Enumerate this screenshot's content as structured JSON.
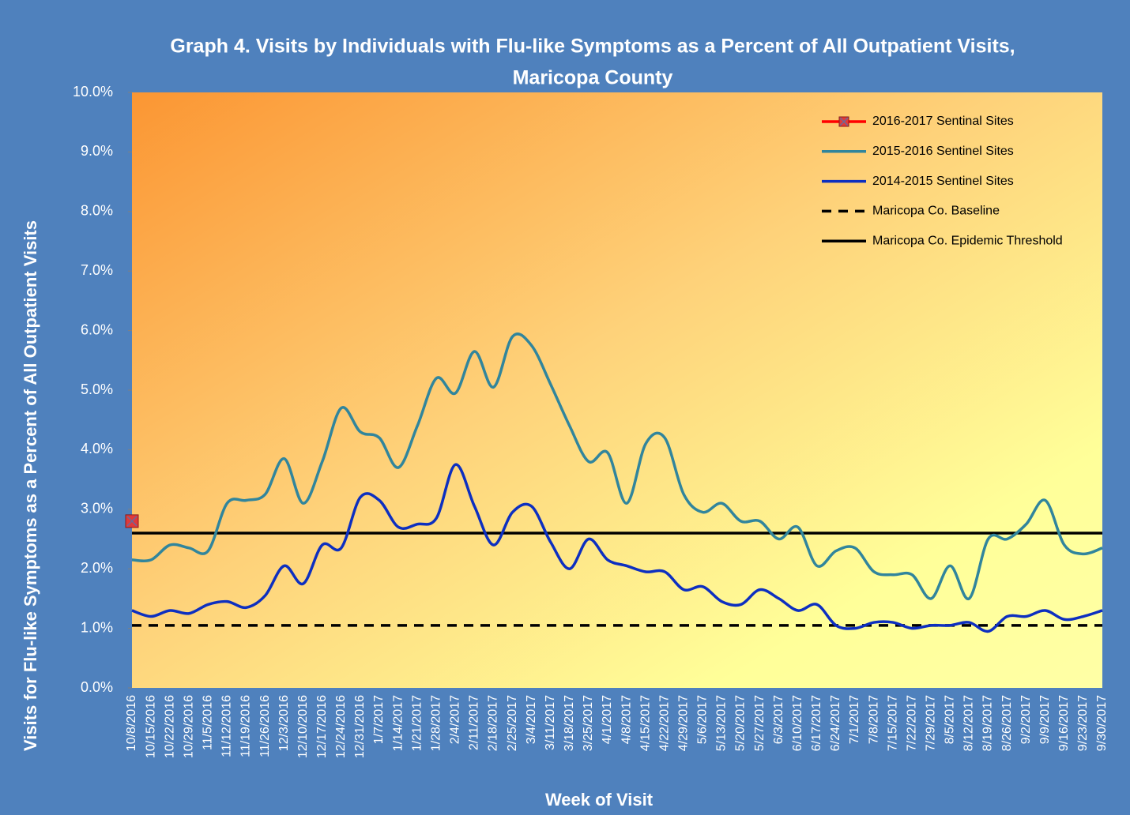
{
  "chart_data": {
    "type": "line",
    "title": [
      "Graph 4. Visits by Individuals  with Flu-like Symptoms as a Percent of All Outpatient Visits,",
      "Maricopa County"
    ],
    "x_label": "Week of Visit",
    "y_label": "Visits for Flu-like Symptoms as a Percent of All Outpatient Visits",
    "categories": [
      "10/8/2016",
      "10/15/2016",
      "10/22/2016",
      "10/29/2016",
      "11/5/2016",
      "11/12/2016",
      "11/19/2016",
      "11/26/2016",
      "12/3/2016",
      "12/10/2016",
      "12/17/2016",
      "12/24/2016",
      "12/31/2016",
      "1/7/2017",
      "1/14/2017",
      "1/21/2017",
      "1/28/2017",
      "2/4/2017",
      "2/11/2017",
      "2/18/2017",
      "2/25/2017",
      "3/4/2017",
      "3/11/2017",
      "3/18/2017",
      "3/25/2017",
      "4/1/2017",
      "4/8/2017",
      "4/15/2017",
      "4/22/2017",
      "4/29/2017",
      "5/6/2017",
      "5/13/2017",
      "5/20/2017",
      "5/27/2017",
      "6/3/2017",
      "6/10/2017",
      "6/17/2017",
      "6/24/2017",
      "7/1/2017",
      "7/8/2017",
      "7/15/2017",
      "7/22/2017",
      "7/29/2017",
      "8/5/2017",
      "8/12/2017",
      "8/19/2017",
      "8/26/2017",
      "9/2/2017",
      "9/9/2017",
      "9/16/2017",
      "9/23/2017",
      "9/30/2017"
    ],
    "series": [
      {
        "name": "2016-2017 Sentinal Sites",
        "color": "#ff0000",
        "marker": true,
        "values": [
          2.8,
          null,
          null,
          null,
          null,
          null,
          null,
          null,
          null,
          null,
          null,
          null,
          null,
          null,
          null,
          null,
          null,
          null,
          null,
          null,
          null,
          null,
          null,
          null,
          null,
          null,
          null,
          null,
          null,
          null,
          null,
          null,
          null,
          null,
          null,
          null,
          null,
          null,
          null,
          null,
          null,
          null,
          null,
          null,
          null,
          null,
          null,
          null,
          null,
          null,
          null,
          null
        ]
      },
      {
        "name": "2015-2016 Sentinel Sites",
        "color": "#31859c",
        "marker": false,
        "values": [
          2.15,
          2.15,
          2.4,
          2.35,
          2.3,
          3.1,
          3.15,
          3.25,
          3.85,
          3.1,
          3.8,
          4.7,
          4.3,
          4.2,
          3.7,
          4.4,
          5.2,
          4.95,
          5.65,
          5.05,
          5.9,
          5.75,
          5.1,
          4.4,
          3.8,
          3.95,
          3.1,
          4.1,
          4.2,
          3.25,
          2.95,
          3.1,
          2.8,
          2.8,
          2.5,
          2.7,
          2.05,
          2.3,
          2.35,
          1.95,
          1.9,
          1.9,
          1.5,
          2.05,
          1.5,
          2.5,
          2.5,
          2.75,
          3.15,
          2.4,
          2.25,
          2.35
        ]
      },
      {
        "name": "2014-2015 Sentinel Sites",
        "color": "#0d2fc0",
        "marker": false,
        "values": [
          1.3,
          1.2,
          1.3,
          1.25,
          1.4,
          1.45,
          1.35,
          1.55,
          2.05,
          1.75,
          2.4,
          2.35,
          3.2,
          3.15,
          2.7,
          2.75,
          2.85,
          3.75,
          3.05,
          2.4,
          2.95,
          3.05,
          2.45,
          2.0,
          2.5,
          2.15,
          2.05,
          1.95,
          1.95,
          1.65,
          1.7,
          1.45,
          1.4,
          1.65,
          1.5,
          1.3,
          1.4,
          1.05,
          1.0,
          1.1,
          1.1,
          1.0,
          1.05,
          1.05,
          1.1,
          0.95,
          1.2,
          1.2,
          1.3,
          1.15,
          1.2,
          1.3
        ]
      }
    ],
    "reference_lines": [
      {
        "name": "Maricopa Co. Baseline",
        "value": 1.05,
        "color": "#000000",
        "dashed": true
      },
      {
        "name": "Maricopa Co. Epidemic Threshold",
        "value": 2.6,
        "color": "#000000",
        "dashed": false
      }
    ],
    "ylim": [
      0,
      10
    ],
    "yticks": [
      {
        "value": 0,
        "label": "0.0%"
      },
      {
        "value": 1,
        "label": "1.0%"
      },
      {
        "value": 2,
        "label": "2.0%"
      },
      {
        "value": 3,
        "label": "3.0%"
      },
      {
        "value": 4,
        "label": "4.0%"
      },
      {
        "value": 5,
        "label": "5.0%"
      },
      {
        "value": 6,
        "label": "6.0%"
      },
      {
        "value": 7,
        "label": "7.0%"
      },
      {
        "value": 8,
        "label": "8.0%"
      },
      {
        "value": 9,
        "label": "9.0%"
      },
      {
        "value": 10,
        "label": "10.0%"
      }
    ],
    "legend": "upper right"
  }
}
